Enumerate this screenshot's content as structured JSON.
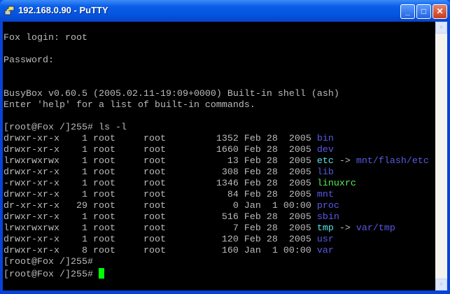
{
  "window": {
    "title": "192.168.0.90 - PuTTY",
    "minimize_glyph": "_",
    "maximize_glyph": "□",
    "close_glyph": "✕"
  },
  "colors": {
    "default": "#bbbbbb",
    "dir": "#5a5ae6",
    "link": "#55e6e6",
    "exec": "#55ee55",
    "cursor": "#00ff00"
  },
  "terminal": {
    "lines": [
      [],
      [
        {
          "t": "Fox login: root"
        }
      ],
      [],
      [
        {
          "t": "Password:"
        }
      ],
      [],
      [],
      [
        {
          "t": "BusyBox v0.60.5 (2005.02.11-19:09+0000) Built-in shell (ash)"
        }
      ],
      [
        {
          "t": "Enter 'help' for a list of built-in commands."
        }
      ],
      [],
      [
        {
          "t": "[root@Fox /]255# ls -l"
        }
      ],
      [
        {
          "t": "drwxr-xr-x    1 root     root         1352 Feb 28  2005 "
        },
        {
          "t": "bin",
          "c": "dir"
        }
      ],
      [
        {
          "t": "drwxr-xr-x    1 root     root         1660 Feb 28  2005 "
        },
        {
          "t": "dev",
          "c": "dir"
        }
      ],
      [
        {
          "t": "lrwxrwxrwx    1 root     root           13 Feb 28  2005 "
        },
        {
          "t": "etc",
          "c": "link"
        },
        {
          "t": " -> "
        },
        {
          "t": "mnt/flash/etc",
          "c": "dir"
        }
      ],
      [
        {
          "t": "drwxr-xr-x    1 root     root          308 Feb 28  2005 "
        },
        {
          "t": "lib",
          "c": "dir"
        }
      ],
      [
        {
          "t": "-rwxr-xr-x    1 root     root         1346 Feb 28  2005 "
        },
        {
          "t": "linuxrc",
          "c": "exec"
        }
      ],
      [
        {
          "t": "drwxr-xr-x    1 root     root           84 Feb 28  2005 "
        },
        {
          "t": "mnt",
          "c": "dir"
        }
      ],
      [
        {
          "t": "dr-xr-xr-x   29 root     root            0 Jan  1 00:00 "
        },
        {
          "t": "proc",
          "c": "dir"
        }
      ],
      [
        {
          "t": "drwxr-xr-x    1 root     root          516 Feb 28  2005 "
        },
        {
          "t": "sbin",
          "c": "dir"
        }
      ],
      [
        {
          "t": "lrwxrwxrwx    1 root     root            7 Feb 28  2005 "
        },
        {
          "t": "tmp",
          "c": "link"
        },
        {
          "t": " -> "
        },
        {
          "t": "var/tmp",
          "c": "dir"
        }
      ],
      [
        {
          "t": "drwxr-xr-x    1 root     root          120 Feb 28  2005 "
        },
        {
          "t": "usr",
          "c": "dir"
        }
      ],
      [
        {
          "t": "drwxr-xr-x    8 root     root          160 Jan  1 00:00 "
        },
        {
          "t": "var",
          "c": "dir"
        }
      ],
      [
        {
          "t": "[root@Fox /]255#"
        }
      ],
      [
        {
          "t": "[root@Fox /]255# "
        },
        {
          "cursor": true
        }
      ]
    ]
  },
  "scrollbar": {
    "up_glyph": "˄",
    "down_glyph": "˅"
  }
}
